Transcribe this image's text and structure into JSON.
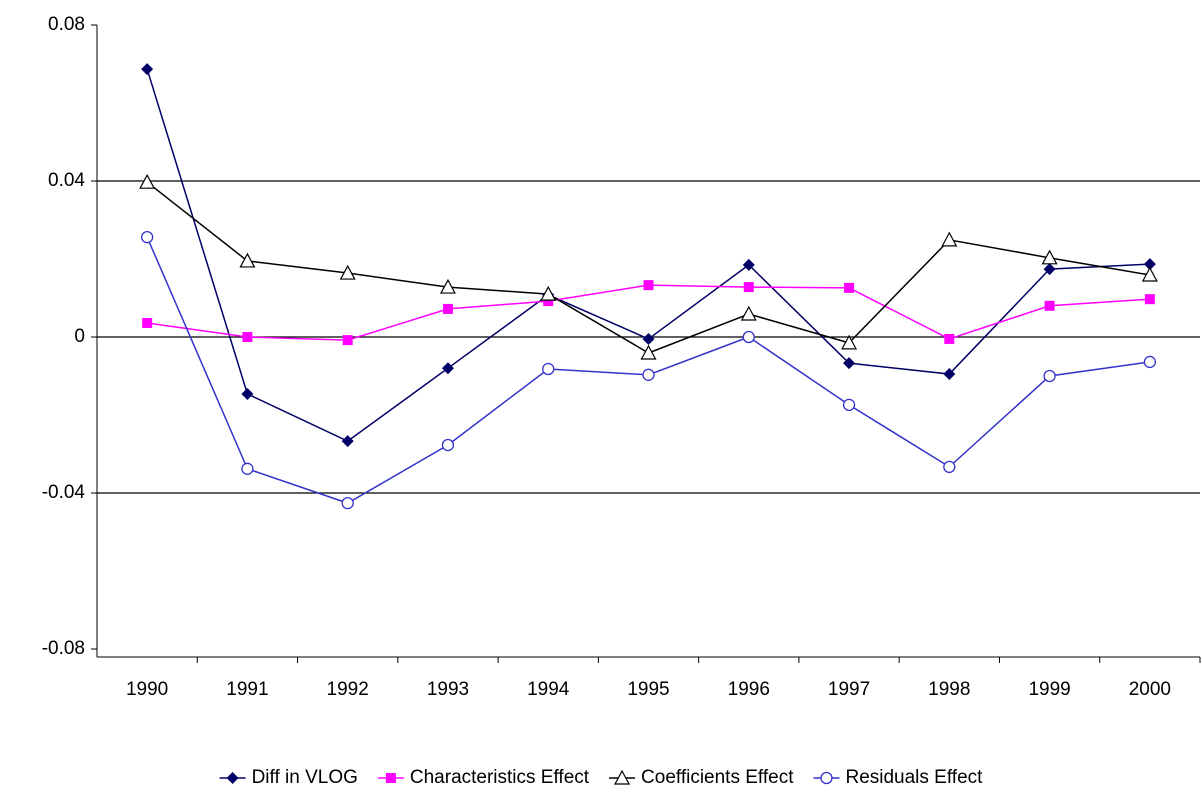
{
  "chart_data": {
    "type": "line",
    "categories": [
      "1990",
      "1991",
      "1992",
      "1993",
      "1994",
      "1995",
      "1996",
      "1997",
      "1998",
      "1999",
      "2000"
    ],
    "ylim": [
      -0.08,
      0.08
    ],
    "yticks": [
      -0.08,
      -0.04,
      0,
      0.04,
      0.08
    ],
    "grid": true,
    "legend": "bottom",
    "series": [
      {
        "name": "Diff in VLOG",
        "color": "#000066",
        "marker": "diamond",
        "values": [
          0.0687,
          -0.0146,
          -0.0267,
          -0.008,
          0.0108,
          -0.0005,
          0.0185,
          -0.0067,
          -0.0095,
          0.0174,
          0.0187
        ]
      },
      {
        "name": "Characteristics Effect",
        "color": "#ff00ff",
        "marker": "square",
        "values": [
          0.0036,
          0,
          -0.0008,
          0.0072,
          0.0092,
          0.0133,
          0.0128,
          0.0126,
          -0.0005,
          0.008,
          0.0097
        ]
      },
      {
        "name": "Coefficients Effect",
        "color": "#000000",
        "marker": "triangle",
        "values": [
          0.0397,
          0.0195,
          0.0164,
          0.0128,
          0.011,
          -0.0041,
          0.0059,
          -0.0015,
          0.0249,
          0.0203,
          0.0159
        ]
      },
      {
        "name": "Residuals Effect",
        "color": "#3333cc",
        "marker": "circle",
        "values": [
          0.0256,
          -0.0338,
          -0.0426,
          -0.0277,
          -0.0082,
          -0.0097,
          0,
          -0.0174,
          -0.0333,
          -0.01,
          -0.0064
        ]
      }
    ]
  }
}
